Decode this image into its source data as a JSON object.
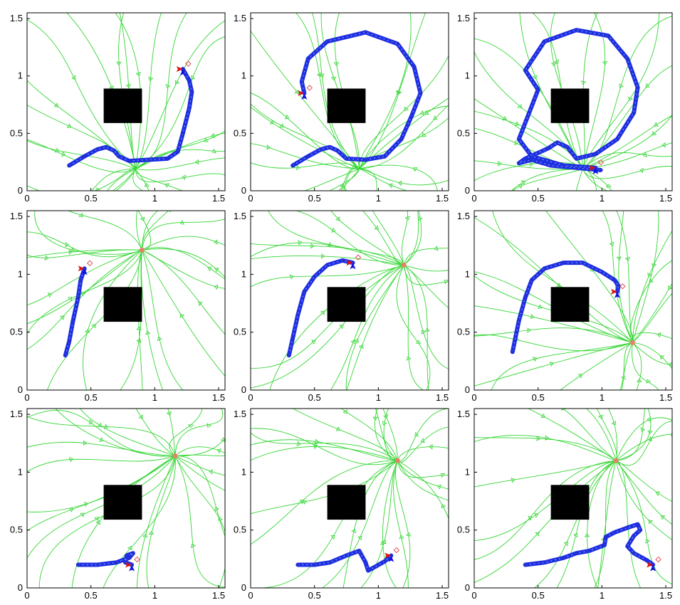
{
  "chart_data": [
    {
      "type": "line",
      "title": "",
      "xlabel": "",
      "ylabel": "",
      "xlim": [
        0,
        1.55
      ],
      "ylim": [
        0,
        1.55
      ],
      "x_ticks": [
        "0",
        "0.5",
        "1",
        "1.5"
      ],
      "y_ticks": [
        "0",
        "0.5",
        "1",
        "1.5"
      ],
      "grid": false,
      "obstacle": {
        "x": [
          0.6,
          0.9
        ],
        "y": [
          0.59,
          0.89
        ]
      },
      "attractor": null,
      "series": [
        {
          "values": [
            [
              0.33,
              0.22
            ],
            [
              0.45,
              0.3
            ],
            [
              0.55,
              0.36
            ],
            [
              0.62,
              0.38
            ],
            [
              0.68,
              0.35
            ],
            [
              0.72,
              0.3
            ],
            [
              0.8,
              0.26
            ],
            [
              0.95,
              0.27
            ],
            [
              1.1,
              0.28
            ],
            [
              1.18,
              0.34
            ],
            [
              1.22,
              0.5
            ],
            [
              1.27,
              0.72
            ],
            [
              1.29,
              0.86
            ],
            [
              1.27,
              0.96
            ],
            [
              1.22,
              1.06
            ]
          ]
        }
      ]
    },
    {
      "type": "line",
      "title": "",
      "xlabel": "",
      "ylabel": "",
      "xlim": [
        0,
        1.55
      ],
      "ylim": [
        0,
        1.55
      ],
      "x_ticks": [
        "0",
        "0.5",
        "1",
        "1.5"
      ],
      "y_ticks": [
        "0",
        "0.5",
        "1",
        "1.5"
      ],
      "grid": false,
      "obstacle": {
        "x": [
          0.6,
          0.9
        ],
        "y": [
          0.59,
          0.89
        ]
      },
      "attractor": null,
      "series": [
        {
          "values": [
            [
              0.33,
              0.22
            ],
            [
              0.45,
              0.3
            ],
            [
              0.55,
              0.36
            ],
            [
              0.62,
              0.38
            ],
            [
              0.68,
              0.35
            ],
            [
              0.75,
              0.28
            ],
            [
              0.9,
              0.27
            ],
            [
              1.05,
              0.3
            ],
            [
              1.18,
              0.45
            ],
            [
              1.26,
              0.65
            ],
            [
              1.33,
              0.85
            ],
            [
              1.28,
              1.08
            ],
            [
              1.15,
              1.28
            ],
            [
              0.9,
              1.38
            ],
            [
              0.6,
              1.3
            ],
            [
              0.45,
              1.15
            ],
            [
              0.4,
              0.95
            ],
            [
              0.42,
              0.85
            ]
          ]
        }
      ]
    },
    {
      "type": "line",
      "title": "",
      "xlabel": "",
      "ylabel": "",
      "xlim": [
        0,
        1.55
      ],
      "ylim": [
        0,
        1.55
      ],
      "x_ticks": [
        "0",
        "0.5",
        "1",
        "1.5"
      ],
      "y_ticks": [
        "0",
        "0.5",
        "1",
        "1.5"
      ],
      "grid": false,
      "obstacle": {
        "x": [
          0.6,
          0.9
        ],
        "y": [
          0.59,
          0.89
        ]
      },
      "attractor": null,
      "series": [
        {
          "values": [
            [
              0.99,
              0.18
            ],
            [
              0.8,
              0.2
            ],
            [
              0.6,
              0.22
            ],
            [
              0.45,
              0.27
            ],
            [
              0.35,
              0.24
            ],
            [
              0.4,
              0.28
            ],
            [
              0.58,
              0.37
            ],
            [
              0.65,
              0.42
            ],
            [
              0.73,
              0.38
            ],
            [
              0.8,
              0.28
            ],
            [
              0.95,
              0.32
            ],
            [
              1.12,
              0.45
            ],
            [
              1.25,
              0.68
            ],
            [
              1.28,
              0.9
            ],
            [
              1.2,
              1.15
            ],
            [
              1.05,
              1.35
            ],
            [
              0.8,
              1.4
            ],
            [
              0.55,
              1.3
            ],
            [
              0.4,
              1.05
            ],
            [
              0.5,
              0.88
            ],
            [
              0.42,
              0.65
            ],
            [
              0.35,
              0.45
            ],
            [
              0.45,
              0.3
            ],
            [
              0.7,
              0.22
            ],
            [
              0.95,
              0.2
            ]
          ]
        }
      ]
    },
    {
      "type": "line",
      "title": "",
      "xlabel": "",
      "ylabel": "",
      "xlim": [
        0,
        1.55
      ],
      "ylim": [
        0,
        1.55
      ],
      "x_ticks": [
        "0",
        "0.5",
        "1",
        "1.5"
      ],
      "y_ticks": [
        "0",
        "0.5",
        "1",
        "1.5"
      ],
      "grid": false,
      "obstacle": {
        "x": [
          0.6,
          0.9
        ],
        "y": [
          0.59,
          0.89
        ]
      },
      "attractor": {
        "x": 0.9,
        "y": 1.21
      },
      "series": [
        {
          "values": [
            [
              0.3,
              0.3
            ],
            [
              0.33,
              0.42
            ],
            [
              0.36,
              0.6
            ],
            [
              0.4,
              0.8
            ],
            [
              0.42,
              0.95
            ],
            [
              0.45,
              1.05
            ]
          ]
        }
      ]
    },
    {
      "type": "line",
      "title": "",
      "xlabel": "",
      "ylabel": "",
      "xlim": [
        0,
        1.55
      ],
      "ylim": [
        0,
        1.55
      ],
      "x_ticks": [
        "0",
        "0.5",
        "1",
        "1.5"
      ],
      "y_ticks": [
        "0",
        "0.5",
        "1",
        "1.5"
      ],
      "grid": false,
      "obstacle": {
        "x": [
          0.6,
          0.9
        ],
        "y": [
          0.59,
          0.89
        ]
      },
      "attractor": {
        "x": 1.2,
        "y": 1.08
      },
      "series": [
        {
          "values": [
            [
              0.3,
              0.3
            ],
            [
              0.33,
              0.45
            ],
            [
              0.37,
              0.65
            ],
            [
              0.42,
              0.85
            ],
            [
              0.5,
              0.98
            ],
            [
              0.6,
              1.08
            ],
            [
              0.72,
              1.12
            ],
            [
              0.8,
              1.1
            ]
          ]
        }
      ]
    },
    {
      "type": "line",
      "title": "",
      "xlabel": "",
      "ylabel": "",
      "xlim": [
        0,
        1.55
      ],
      "ylim": [
        0,
        1.55
      ],
      "x_ticks": [
        "0",
        "0.5",
        "1",
        "1.5"
      ],
      "y_ticks": [
        "0",
        "0.5",
        "1",
        "1.5"
      ],
      "grid": false,
      "obstacle": {
        "x": [
          0.6,
          0.9
        ],
        "y": [
          0.59,
          0.89
        ]
      },
      "attractor": {
        "x": 1.24,
        "y": 0.41
      },
      "series": [
        {
          "values": [
            [
              0.3,
              0.33
            ],
            [
              0.35,
              0.6
            ],
            [
              0.4,
              0.8
            ],
            [
              0.45,
              0.95
            ],
            [
              0.55,
              1.05
            ],
            [
              0.7,
              1.1
            ],
            [
              0.85,
              1.1
            ],
            [
              1.0,
              1.02
            ],
            [
              1.1,
              0.95
            ],
            [
              1.13,
              0.9
            ],
            [
              1.12,
              0.85
            ]
          ]
        }
      ]
    },
    {
      "type": "line",
      "title": "",
      "xlabel": "",
      "ylabel": "",
      "xlim": [
        0,
        1.55
      ],
      "ylim": [
        0,
        1.55
      ],
      "x_ticks": [
        "0",
        "0.5",
        "1",
        "1.5"
      ],
      "y_ticks": [
        "0",
        "0.5",
        "1",
        "1.5"
      ],
      "grid": false,
      "obstacle": {
        "x": [
          0.6,
          0.9
        ],
        "y": [
          0.59,
          0.89
        ]
      },
      "attractor": {
        "x": 1.16,
        "y": 1.14
      },
      "series": [
        {
          "values": [
            [
              0.4,
              0.2
            ],
            [
              0.55,
              0.2
            ],
            [
              0.7,
              0.22
            ],
            [
              0.8,
              0.26
            ],
            [
              0.83,
              0.3
            ],
            [
              0.78,
              0.28
            ],
            [
              0.77,
              0.22
            ],
            [
              0.82,
              0.2
            ]
          ]
        }
      ]
    },
    {
      "type": "line",
      "title": "",
      "xlabel": "",
      "ylabel": "",
      "xlim": [
        0,
        1.55
      ],
      "ylim": [
        0,
        1.55
      ],
      "x_ticks": [
        "0",
        "0.5",
        "1",
        "1.5"
      ],
      "y_ticks": [
        "0",
        "0.5",
        "1",
        "1.5"
      ],
      "grid": false,
      "obstacle": {
        "x": [
          0.6,
          0.9
        ],
        "y": [
          0.59,
          0.89
        ]
      },
      "attractor": {
        "x": 1.15,
        "y": 1.1
      },
      "series": [
        {
          "values": [
            [
              0.37,
              0.2
            ],
            [
              0.5,
              0.2
            ],
            [
              0.62,
              0.22
            ],
            [
              0.75,
              0.28
            ],
            [
              0.85,
              0.32
            ],
            [
              0.9,
              0.22
            ],
            [
              0.92,
              0.15
            ],
            [
              0.97,
              0.18
            ],
            [
              1.05,
              0.23
            ],
            [
              1.1,
              0.28
            ]
          ]
        }
      ]
    },
    {
      "type": "line",
      "title": "",
      "xlabel": "",
      "ylabel": "",
      "xlim": [
        0,
        1.55
      ],
      "ylim": [
        0,
        1.55
      ],
      "x_ticks": [
        "0",
        "0.5",
        "1",
        "1.5"
      ],
      "y_ticks": [
        "0",
        "0.5",
        "1",
        "1.5"
      ],
      "grid": false,
      "obstacle": {
        "x": [
          0.6,
          0.9
        ],
        "y": [
          0.59,
          0.89
        ]
      },
      "attractor": {
        "x": 1.11,
        "y": 1.1
      },
      "series": [
        {
          "values": [
            [
              0.4,
              0.2
            ],
            [
              0.55,
              0.22
            ],
            [
              0.7,
              0.26
            ],
            [
              0.8,
              0.3
            ],
            [
              0.9,
              0.32
            ],
            [
              1.02,
              0.37
            ],
            [
              1.03,
              0.44
            ],
            [
              1.1,
              0.48
            ],
            [
              1.2,
              0.52
            ],
            [
              1.28,
              0.55
            ],
            [
              1.3,
              0.5
            ],
            [
              1.25,
              0.45
            ],
            [
              1.2,
              0.36
            ],
            [
              1.25,
              0.3
            ],
            [
              1.35,
              0.24
            ],
            [
              1.4,
              0.2
            ]
          ]
        }
      ]
    }
  ]
}
